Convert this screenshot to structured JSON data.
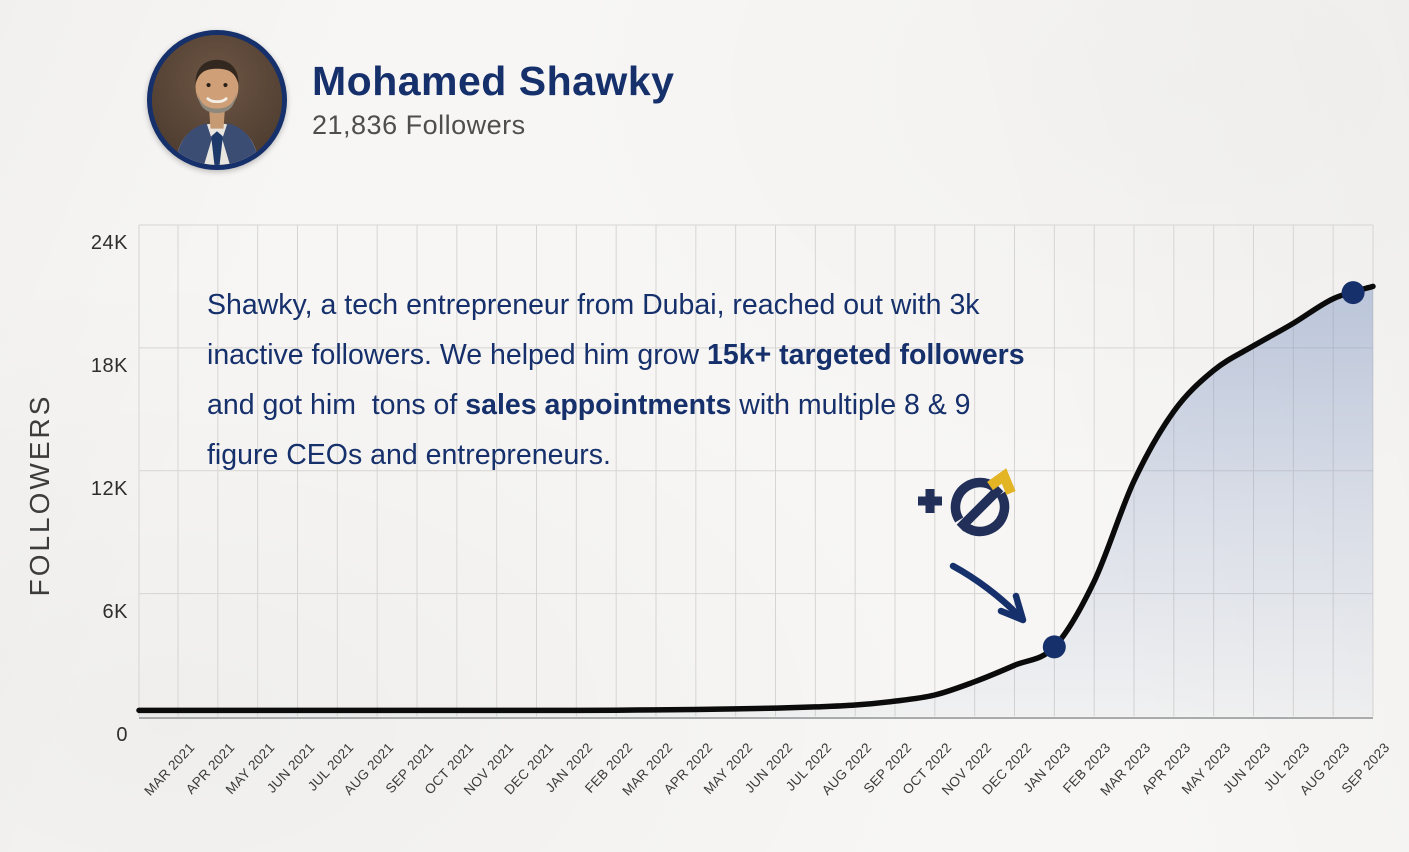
{
  "header": {
    "name": "Mohamed Shawky",
    "followers": "21,836 Followers"
  },
  "story": {
    "line1": "Shawky, a tech entrepreneur from Dubai, reached out with 3k",
    "line2a": "inactive followers. We helped him grow ",
    "line2b": "15k+ targeted followers",
    "line3a": "and got him  tons of ",
    "line3b": "sales appointments",
    "line3c": " with multiple 8 & 9",
    "line4": "figure CEOs and entrepreneurs."
  },
  "colors": {
    "navy": "#16306c",
    "logo_navy": "#222f58",
    "logo_gold": "#e3b424",
    "curve": "#0b0b0b",
    "grid": "#d7d5d2",
    "fill_blue": "#7089bd",
    "axis_text": "#3a3a3a",
    "followers_gray": "#4e4e4e",
    "background": "#f7f6f4"
  },
  "chart_data": {
    "type": "area",
    "title": "",
    "xlabel": "",
    "ylabel": "FOLLOWERS",
    "ylim": [
      0,
      24000
    ],
    "grid": true,
    "legend": false,
    "x": [
      "MAR 2021",
      "APR 2021",
      "MAY 2021",
      "JUN 2021",
      "JUL 2021",
      "AUG 2021",
      "SEP 2021",
      "OCT 2021",
      "NOV 2021",
      "DEC 2021",
      "JAN 2022",
      "FEB 2022",
      "MAR 2022",
      "APR 2022",
      "MAY 2022",
      "JUN 2022",
      "JUL 2022",
      "AUG 2022",
      "SEP 2022",
      "OCT 2022",
      "NOV 2022",
      "DEC 2022",
      "JAN 2023",
      "FEB 2023",
      "MAR 2023",
      "APR 2023",
      "MAY 2023",
      "JUN 2023",
      "JUL 2023",
      "AUG 2023",
      "SEP 2023"
    ],
    "values": [
      300,
      300,
      300,
      300,
      300,
      300,
      300,
      300,
      300,
      300,
      300,
      310,
      320,
      340,
      370,
      410,
      470,
      560,
      750,
      1050,
      1700,
      2500,
      3400,
      6600,
      11500,
      14900,
      16900,
      18100,
      19200,
      20400,
      21000
    ],
    "yticks": [
      {
        "label": "24K",
        "value": 24000
      },
      {
        "label": "18K",
        "value": 18000
      },
      {
        "label": "12K",
        "value": 12000
      },
      {
        "label": "6K",
        "value": 6000
      },
      {
        "label": "0",
        "value": 0
      }
    ],
    "annotations": {
      "dots": [
        {
          "name": "start-dot",
          "x_index": 22,
          "value": 3400,
          "month": "JAN 2023"
        },
        {
          "name": "end-dot",
          "x_index": 29.5,
          "value": 20700,
          "month": "AUG 2023"
        }
      ],
      "arrow": {
        "points_at": "start-dot"
      }
    }
  }
}
